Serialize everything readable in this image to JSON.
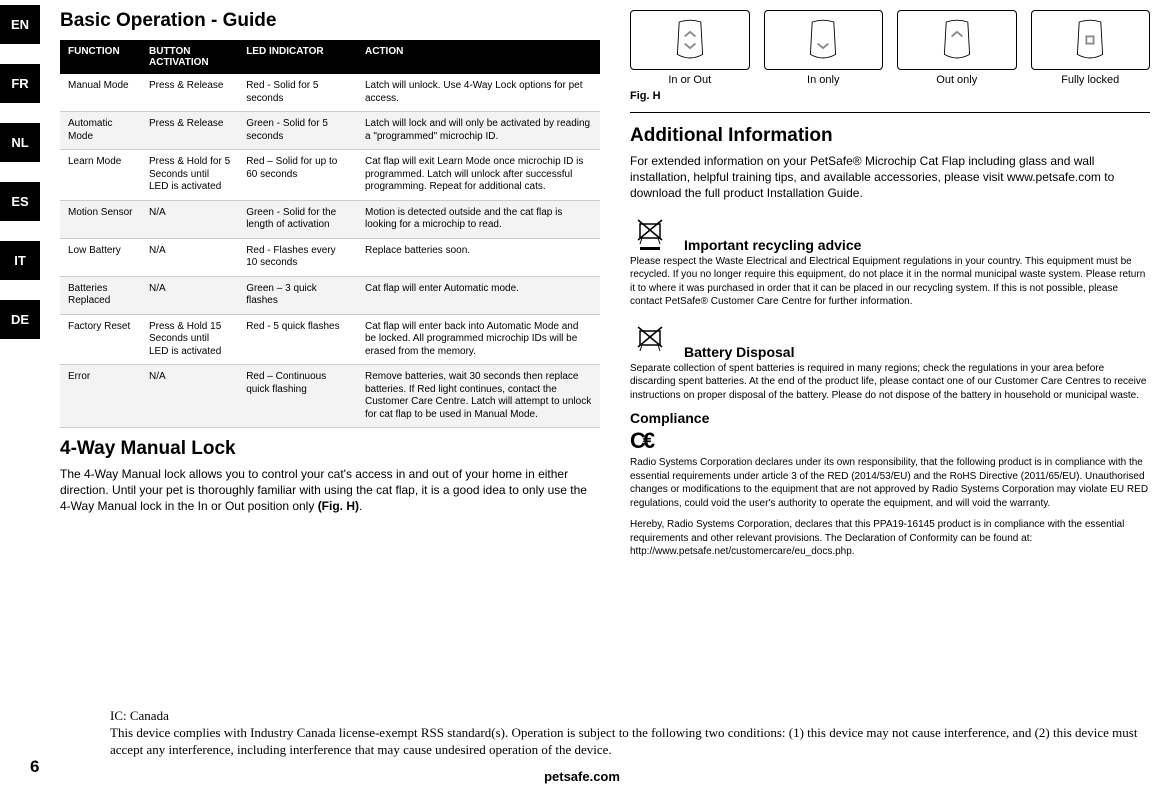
{
  "langs": [
    "EN",
    "FR",
    "NL",
    "ES",
    "IT",
    "DE"
  ],
  "left": {
    "title": "Basic Operation - Guide",
    "table": {
      "headers": [
        "FUNCTION",
        "BUTTON ACTIVATION",
        "LED INDICATOR",
        "ACTION"
      ],
      "rows": [
        [
          "Manual Mode",
          "Press & Release",
          "Red - Solid for 5 seconds",
          "Latch will unlock. Use 4-Way Lock options for pet access."
        ],
        [
          "Automatic Mode",
          "Press & Release",
          "Green -  Solid for 5 seconds",
          "Latch will lock and will only be activated by reading a \"programmed\" microchip ID."
        ],
        [
          "Learn Mode",
          "Press & Hold  for 5 Seconds until LED is activated",
          "Red – Solid for up to 60 seconds",
          "Cat flap will exit Learn Mode once microchip ID is programmed. Latch will unlock after successful programming. Repeat for additional cats."
        ],
        [
          "Motion Sensor",
          "N/A",
          "Green - Solid for the length of activation",
          "Motion is detected outside and the cat flap is looking for a microchip to read."
        ],
        [
          "Low Battery",
          "N/A",
          "Red - Flashes every 10 seconds",
          "Replace batteries soon."
        ],
        [
          "Batteries Replaced",
          "N/A",
          "Green – 3 quick flashes",
          "Cat flap will enter Automatic mode."
        ],
        [
          "Factory Reset",
          "Press & Hold 15 Seconds until LED is activated",
          "Red - 5 quick flashes",
          "Cat flap will enter back into Automatic Mode and be locked. All programmed microchip IDs will be erased from the memory."
        ],
        [
          "Error",
          "N/A",
          "Red – Continuous quick flashing",
          "Remove batteries, wait 30 seconds then replace batteries. If Red light continues, contact the Customer Care Centre. Latch will attempt to unlock for cat flap to be used in Manual Mode."
        ]
      ]
    },
    "lock_title": "4-Way Manual Lock",
    "lock_text_a": "The 4-Way Manual lock allows you to control your cat's access in and out of your home in either direction. Until your pet is thoroughly familiar with using the cat flap, it is a good idea to only use the 4-Way Manual lock in the In or Out position only ",
    "lock_text_b": "(Fig. H)",
    "lock_text_c": "."
  },
  "right": {
    "fig_caps": [
      "In or Out",
      "In only",
      "Out only",
      "Fully locked"
    ],
    "fig_label": "Fig. H",
    "addl_title": "Additional Information",
    "addl_text": "For extended information on your PetSafe® Microchip Cat Flap including glass and wall installation, helpful training tips, and available accessories, please visit www.petsafe.com to download the full product Installation Guide.",
    "recycling_title": "Important recycling advice",
    "recycling_text": "Please respect the Waste Electrical and Electrical Equipment regulations in your country. This equipment must be recycled. If you no longer require this equipment, do not place it in the normal municipal waste system. Please return it to where it was purchased in order that it can be placed in our recycling system. If this is not possible, please contact PetSafe® Customer Care Centre for further information.",
    "battery_title": "Battery Disposal",
    "battery_text": "Separate collection of spent batteries is required in many regions; check the regulations in your area before discarding spent batteries. At the end of the product life, please contact one of our Customer Care Centres to receive instructions on proper disposal of the battery. Please do not dispose of the battery in household or municipal waste.",
    "compliance_title": "Compliance",
    "compliance_text1": "Radio Systems Corporation declares under its own responsibility, that the following product is in compliance with the essential requirements under article 3 of the RED (2014/53/EU) and the RoHS Directive (2011/65/EU). Unauthorised changes or modifications to the equipment that are not approved by Radio Systems Corporation may violate EU RED regulations, could void the user's authority to operate the equipment, and will void the warranty.",
    "compliance_text2": "Hereby, Radio Systems Corporation, declares that this PPA19-16145 product is in compliance with the essential requirements and other relevant provisions. The Declaration of Conformity can be found at: http://www.petsafe.net/customercare/eu_docs.php."
  },
  "ic": {
    "title": "IC: Canada",
    "text": "This device complies with Industry Canada license-exempt RSS standard(s). Operation is subject to the following two conditions: (1) this device may not cause interference, and (2) this device must accept any interference, including interference that may cause undesired operation of the device."
  },
  "page_number": "6",
  "footer": "petsafe.com",
  "colors": {
    "accent": "#000000",
    "row_alt": "#f3f3f3"
  }
}
